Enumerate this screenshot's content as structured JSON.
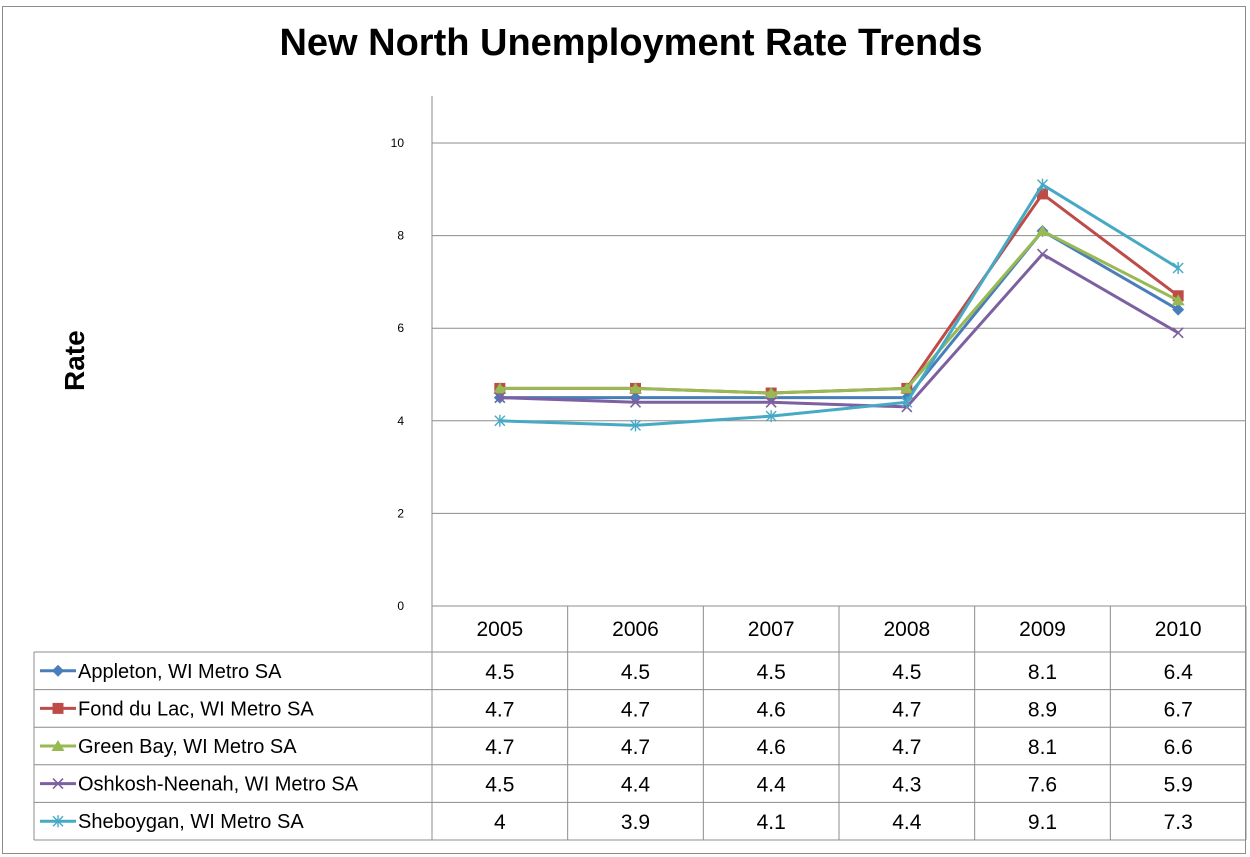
{
  "chart_data": {
    "type": "line",
    "title": "New North Unemployment Rate Trends",
    "xlabel": "",
    "ylabel": "Rate",
    "ylim": [
      0,
      11
    ],
    "y_ticks": [
      "0",
      "2",
      "4",
      "6",
      "8",
      "10"
    ],
    "categories": [
      "2005",
      "2006",
      "2007",
      "2008",
      "2009",
      "2010"
    ],
    "grid": true,
    "legend": "data-table",
    "series": [
      {
        "name": "Appleton, WI Metro SA",
        "color": "#4a7ebb",
        "marker": "diamond",
        "values": [
          4.5,
          4.5,
          4.5,
          4.5,
          8.1,
          6.4
        ],
        "labels": [
          "4.5",
          "4.5",
          "4.5",
          "4.5",
          "8.1",
          "6.4"
        ]
      },
      {
        "name": "Fond du Lac, WI Metro SA",
        "color": "#be4b48",
        "marker": "square",
        "values": [
          4.7,
          4.7,
          4.6,
          4.7,
          8.9,
          6.7
        ],
        "labels": [
          "4.7",
          "4.7",
          "4.6",
          "4.7",
          "8.9",
          "6.7"
        ]
      },
      {
        "name": "Green Bay, WI Metro SA",
        "color": "#98b954",
        "marker": "triangle",
        "values": [
          4.7,
          4.7,
          4.6,
          4.7,
          8.1,
          6.6
        ],
        "labels": [
          "4.7",
          "4.7",
          "4.6",
          "4.7",
          "8.1",
          "6.6"
        ]
      },
      {
        "name": "Oshkosh-Neenah, WI Metro SA",
        "color": "#7d60a0",
        "marker": "x",
        "values": [
          4.5,
          4.4,
          4.4,
          4.3,
          7.6,
          5.9
        ],
        "labels": [
          "4.5",
          "4.4",
          "4.4",
          "4.3",
          "7.6",
          "5.9"
        ]
      },
      {
        "name": "Sheboygan, WI Metro SA",
        "color": "#46aac5",
        "marker": "star",
        "values": [
          4.0,
          3.9,
          4.1,
          4.4,
          9.1,
          7.3
        ],
        "labels": [
          "4",
          "3.9",
          "4.1",
          "4.4",
          "9.1",
          "7.3"
        ]
      }
    ]
  }
}
